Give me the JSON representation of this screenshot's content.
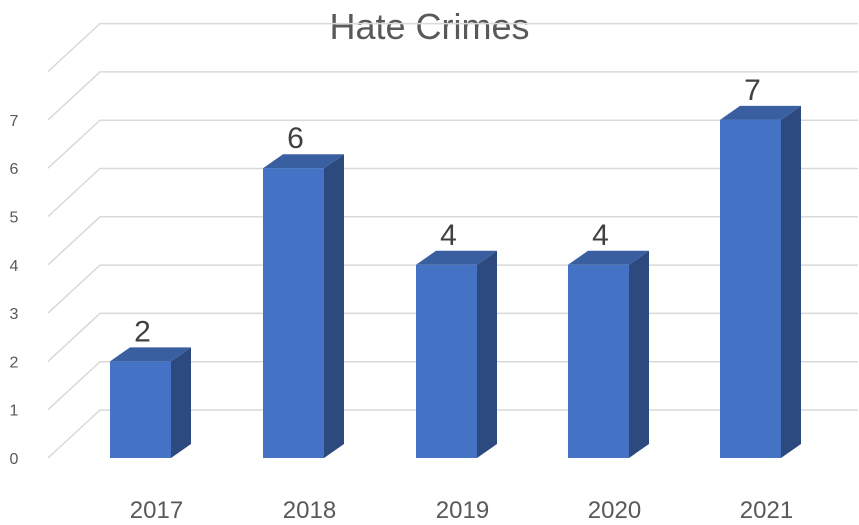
{
  "chart_data": {
    "type": "bar",
    "title": "Hate Crimes",
    "xlabel": "",
    "ylabel": "",
    "categories": [
      "2017",
      "2018",
      "2019",
      "2020",
      "2021"
    ],
    "values": [
      2,
      6,
      4,
      4,
      7
    ],
    "yticks": [
      0,
      1,
      2,
      3,
      4,
      5,
      6,
      7
    ],
    "ylim": [
      0,
      8
    ],
    "grid": true,
    "legend": "none",
    "style": "3d-column",
    "colors": {
      "front": "#4472C4",
      "side": "#2C4A7E",
      "top": "#3A5FA0",
      "grid": "#d9d9d9",
      "text": "#595959"
    }
  }
}
